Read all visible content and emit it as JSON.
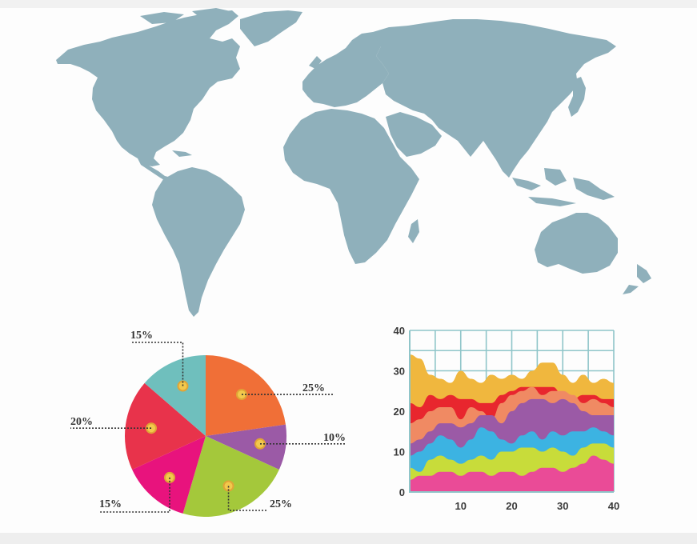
{
  "map": {
    "fill": "#8fb0bb"
  },
  "chart_data": [
    {
      "type": "pie",
      "labels": [
        "25%",
        "10%",
        "25%",
        "15%",
        "20%",
        "15%"
      ],
      "values": [
        25,
        10,
        25,
        15,
        20,
        15
      ],
      "colors": [
        "#f06f37",
        "#9b5aa6",
        "#a4c83b",
        "#e8137d",
        "#e8334b",
        "#6fbfbd"
      ]
    },
    {
      "type": "area",
      "x_ticks": [
        10,
        20,
        30,
        40
      ],
      "y_ticks": [
        0,
        10,
        20,
        30,
        40
      ],
      "xlim": [
        0,
        40
      ],
      "ylim": [
        0,
        40
      ],
      "grid": true,
      "x": [
        0,
        2,
        4,
        6,
        8,
        10,
        12,
        14,
        16,
        18,
        20,
        22,
        24,
        26,
        28,
        30,
        32,
        34,
        36,
        38,
        40
      ],
      "series": [
        {
          "color": "#ea4b97",
          "values": [
            3,
            4,
            4,
            5,
            5,
            4,
            5,
            5,
            4,
            5,
            5,
            4,
            5,
            6,
            6,
            5,
            6,
            7,
            9,
            8,
            7
          ]
        },
        {
          "color": "#c8dc3a",
          "values": [
            6,
            5,
            8,
            9,
            8,
            7,
            8,
            9,
            8,
            10,
            10,
            11,
            11,
            10,
            11,
            10,
            9,
            11,
            12,
            12,
            11
          ]
        },
        {
          "color": "#3cb3e2",
          "values": [
            9,
            10,
            12,
            14,
            13,
            11,
            13,
            16,
            15,
            13,
            12,
            14,
            15,
            13,
            15,
            14,
            15,
            15,
            16,
            15,
            14
          ]
        },
        {
          "color": "#9b5aa6",
          "values": [
            12,
            13,
            15,
            17,
            17,
            16,
            17,
            19,
            19,
            17,
            20,
            22,
            23,
            23,
            22,
            23,
            22,
            20,
            19,
            19,
            19
          ]
        },
        {
          "color": "#f08a63",
          "values": [
            17,
            18,
            20,
            21,
            21,
            18,
            21,
            20,
            18,
            22,
            24,
            25,
            26,
            24,
            25,
            25,
            24,
            22,
            23,
            22,
            21
          ]
        },
        {
          "color": "#e8262e",
          "values": [
            22,
            21,
            24,
            23,
            24,
            23,
            23,
            22,
            22,
            24,
            25,
            26,
            26,
            26,
            26,
            24,
            23,
            24,
            24,
            23,
            23
          ]
        },
        {
          "color": "#f0b73e",
          "values": [
            34,
            33,
            29,
            28,
            27,
            30,
            28,
            27,
            29,
            28,
            29,
            28,
            30,
            32,
            32,
            29,
            27,
            29,
            27,
            28,
            27
          ]
        }
      ]
    }
  ]
}
